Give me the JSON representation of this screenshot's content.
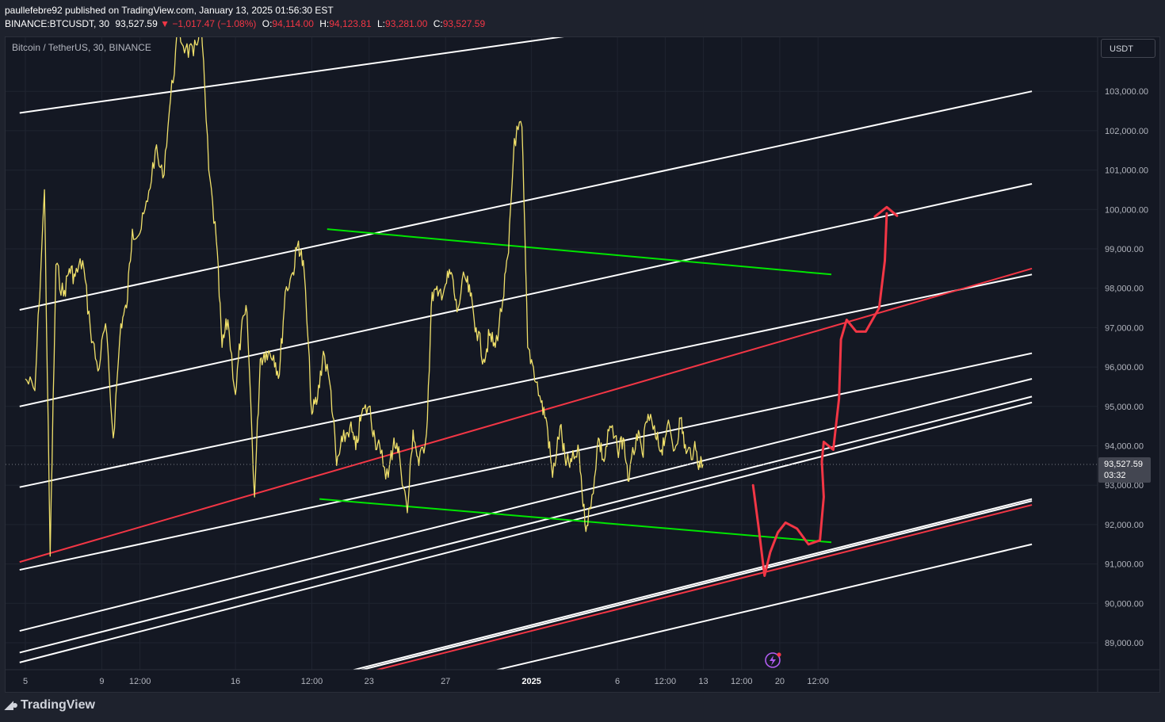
{
  "header": {
    "published_line": "paullefebre92 published on TradingView.com, January 13, 2025 01:56:30 EST",
    "symbol": "BINANCE:BTCUSDT, 30",
    "last": "93,527.59",
    "change": "▼ −1,017.47 (−1.08%)",
    "open_label": "O:",
    "open": "94,114.00",
    "high_label": "H:",
    "high": "94,123.81",
    "low_label": "L:",
    "low": "93,281.00",
    "close_label": "C:",
    "close": "93,527.59"
  },
  "symbol_title": "Bitcoin / TetherUS, 30, BINANCE",
  "currency_button": "USDT",
  "price_tag": {
    "price": "93,527.59",
    "countdown": "03:32"
  },
  "footer": {
    "logo_text": "TradingView"
  },
  "colors": {
    "background": "#141823",
    "candles": "#f0e06a",
    "channel_white": "#ffffff",
    "channel_red": "#f23645",
    "triangle_green": "#00e600",
    "drawing_red": "#f23645",
    "lightning_badge": "#b05cf0"
  },
  "chart_data": {
    "type": "line",
    "title": "Bitcoin / TetherUS, 30, BINANCE",
    "y_axis": {
      "ticks": [
        89000,
        90000,
        91000,
        92000,
        93000,
        94000,
        95000,
        96000,
        97000,
        98000,
        99000,
        100000,
        101000,
        102000,
        103000
      ],
      "tick_labels": [
        "89,000.00",
        "90,000.00",
        "91,000.00",
        "92,000.00",
        "93,000.00",
        "94,000.00",
        "95,000.00",
        "96,000.00",
        "97,000.00",
        "98,000.00",
        "99,000.00",
        "100,000.00",
        "101,000.00",
        "102,000.00",
        "103,000.00"
      ],
      "ylim": [
        88300,
        104400
      ]
    },
    "x_axis": {
      "tick_labels": [
        "5",
        "9",
        "12:00",
        "16",
        "12:00",
        "23",
        "27",
        "2025",
        "6",
        "12:00",
        "13",
        "12:00",
        "20",
        "12:00"
      ],
      "tick_positions_days": [
        0,
        4,
        6,
        11,
        15,
        18,
        22,
        26.5,
        31,
        33.5,
        35.5,
        37.5,
        39.5,
        41.5
      ]
    },
    "last_price": 93527.59,
    "series": [
      {
        "x_days": [
          0,
          0.5,
          1,
          1.3,
          1.6,
          2,
          2.3,
          2.6,
          3,
          3.4,
          3.8,
          4.2,
          4.6,
          5,
          5.3,
          5.6,
          6,
          6.4,
          6.8,
          7.2,
          7.6,
          8,
          8.4,
          8.8,
          9.2,
          9.6,
          10,
          10.3,
          10.6,
          11,
          11.3,
          11.6,
          12,
          12.3,
          12.6,
          13,
          13.3,
          13.6,
          14,
          14.3,
          14.6,
          15,
          15.3,
          15.6,
          16,
          16.3,
          16.6,
          17,
          17.3,
          17.6,
          18,
          18.3,
          18.6,
          19,
          19.3,
          19.6,
          20,
          20.3,
          20.6,
          21,
          21.3,
          21.6,
          22,
          22.3,
          22.6,
          23,
          23.3,
          23.6,
          24,
          24.3,
          24.6,
          25,
          25.3,
          25.6,
          26,
          26.3,
          26.6,
          27,
          27.3,
          27.6,
          28,
          28.3,
          28.6,
          29,
          29.3,
          29.6,
          30,
          30.3,
          30.6,
          31,
          31.3,
          31.6,
          32,
          32.3,
          32.6,
          33,
          33.3,
          33.6,
          34,
          34.3,
          34.6,
          35,
          35.3,
          35.5
        ],
        "values": [
          95700,
          95400,
          100500,
          91200,
          98600,
          97800,
          98500,
          98300,
          98700,
          97000,
          95900,
          97100,
          94200,
          97100,
          97500,
          99500,
          99400,
          100200,
          101500,
          100800,
          102800,
          104500,
          104100,
          103900,
          104800,
          101000,
          99200,
          96500,
          97200,
          95300,
          96900,
          97400,
          92700,
          96200,
          96400,
          96300,
          95800,
          97900,
          98400,
          99200,
          98400,
          94800,
          95200,
          96400,
          95400,
          93500,
          94100,
          94500,
          93900,
          94800,
          95000,
          94200,
          93800,
          93200,
          94200,
          93700,
          92300,
          94400,
          93500,
          94300,
          97900,
          97800,
          98100,
          98400,
          97400,
          98300,
          97800,
          97000,
          96200,
          96800,
          96500,
          97700,
          98900,
          101800,
          102100,
          96500,
          96000,
          95100,
          94600,
          93200,
          94500,
          93500,
          93600,
          93800,
          92000,
          92400,
          94200,
          93600,
          94500,
          93900,
          94200,
          93100,
          94300,
          93800,
          94800,
          94200,
          93900,
          94500,
          93900,
          94700,
          93800,
          93900,
          93600,
          93527.59
        ],
        "y_label": "BTCUSDT 30m close"
      }
    ],
    "drawings": {
      "white_channel_lines": [
        {
          "x1": -0.3,
          "y1": 102450,
          "x2": 47.4,
          "y2": 105700
        },
        {
          "x1": -0.3,
          "y1": 97450,
          "x2": 52.7,
          "y2": 103000
        },
        {
          "x1": -0.3,
          "y1": 95000,
          "x2": 52.7,
          "y2": 100650
        },
        {
          "x1": -0.3,
          "y1": 92950,
          "x2": 52.7,
          "y2": 98350
        },
        {
          "x1": -0.3,
          "y1": 90850,
          "x2": 52.7,
          "y2": 96350
        },
        {
          "x1": -0.3,
          "y1": 89300,
          "x2": 52.7,
          "y2": 95700
        },
        {
          "x1": -0.3,
          "y1": 88750,
          "x2": 52.7,
          "y2": 95250
        },
        {
          "x1": -0.3,
          "y1": 88500,
          "x2": 52.7,
          "y2": 95100
        },
        {
          "x1": 17.1,
          "y1": 88300,
          "x2": 52.7,
          "y2": 92650
        },
        {
          "x1": 17.1,
          "y1": 88250,
          "x2": 52.7,
          "y2": 92600
        },
        {
          "x1": 24.6,
          "y1": 88300,
          "x2": 52.7,
          "y2": 91500
        }
      ],
      "red_channel_lines": [
        {
          "x1": -0.3,
          "y1": 91050,
          "x2": 52.7,
          "y2": 98500
        },
        {
          "x1": 18.3,
          "y1": 88300,
          "x2": 52.7,
          "y2": 92500
        }
      ],
      "green_triangle_lines": [
        {
          "x1": 15.8,
          "y1": 99500,
          "x2": 42.2,
          "y2": 98350
        },
        {
          "x1": 15.4,
          "y1": 92650,
          "x2": 42.2,
          "y2": 91550
        }
      ],
      "red_projection_path": [
        [
          38.1,
          93000
        ],
        [
          38.4,
          91900
        ],
        [
          38.7,
          90700
        ],
        [
          39.0,
          91300
        ],
        [
          39.4,
          91800
        ],
        [
          39.8,
          92050
        ],
        [
          40.4,
          91900
        ],
        [
          41.0,
          91500
        ],
        [
          41.6,
          91600
        ],
        [
          41.8,
          92700
        ],
        [
          41.7,
          93600
        ],
        [
          41.8,
          94100
        ],
        [
          42.3,
          93900
        ],
        [
          42.6,
          95200
        ],
        [
          42.7,
          96700
        ],
        [
          43.0,
          97200
        ],
        [
          43.5,
          96900
        ],
        [
          44.0,
          96900
        ],
        [
          44.7,
          97500
        ],
        [
          45.0,
          98700
        ],
        [
          45.1,
          99900
        ]
      ],
      "arrowhead": {
        "x": 45.1,
        "y": 100000
      }
    }
  }
}
